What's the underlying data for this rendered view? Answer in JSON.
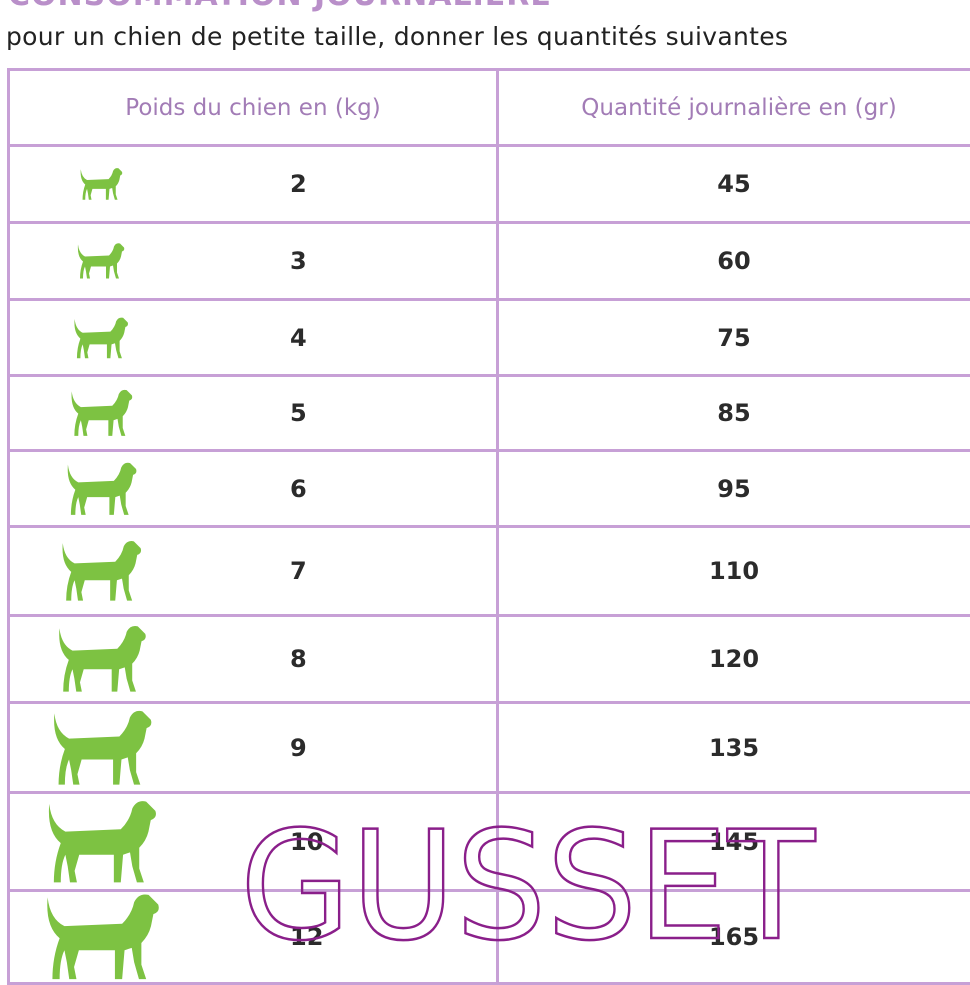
{
  "title": "CONSOMMATION JOURNALIÈRE",
  "subtitle": "pour un chien de petite taille, donner les quantités suivantes",
  "table": {
    "headers": [
      "Poids du chien en (kg)",
      "Quantité journalière en (gr)"
    ],
    "rows": [
      {
        "weight": "2",
        "quantity": "45"
      },
      {
        "weight": "3",
        "quantity": "60"
      },
      {
        "weight": "4",
        "quantity": "75"
      },
      {
        "weight": "5",
        "quantity": "85"
      },
      {
        "weight": "6",
        "quantity": "95"
      },
      {
        "weight": "7",
        "quantity": "110"
      },
      {
        "weight": "8",
        "quantity": "120"
      },
      {
        "weight": "9",
        "quantity": "135"
      },
      {
        "weight": "10",
        "quantity": "145"
      },
      {
        "weight": "12",
        "quantity": "165"
      }
    ]
  },
  "icon": "dog-icon",
  "colors": {
    "dog": "#7dc242",
    "border": "#c7a0d6",
    "header_text": "#a27cb6",
    "watermark": "#8a1f8a"
  },
  "watermark": "GUSSET"
}
